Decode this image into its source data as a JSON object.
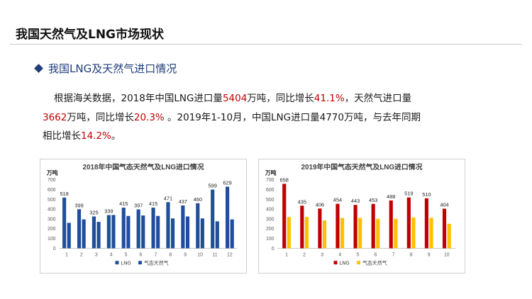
{
  "slide": {
    "title": "我国天然气及LNG市场现状"
  },
  "section": {
    "heading": "我国LNG及天然气进口情况"
  },
  "paragraph": {
    "s1": "根据海关数据，2018年中国LNG进口量",
    "s2": "5404",
    "s3": "万吨，同比增长",
    "s4": "41.1%",
    "s5": "，天然气进口量",
    "s6": "3662",
    "s7": "万吨，同比增长",
    "s8": "20.3%",
    "s9": " 。2019年1-10月，中国LNG进口量4770万吨，与去年同期",
    "s10": "相比增长",
    "s11": "14.2%",
    "s12": "。"
  },
  "colors": {
    "highlight": "#c00000",
    "accent": "#1f3d7a"
  },
  "chart_data": [
    {
      "type": "bar",
      "title": "2018年中国气态天然气及LNG进口情况",
      "unit": "万吨",
      "categories": [
        "1",
        "2",
        "3",
        "4",
        "5",
        "6",
        "7",
        "8",
        "9",
        "10",
        "11",
        "12"
      ],
      "series": [
        {
          "name": "LNG",
          "color": "#1f4e9c",
          "values": [
            518,
            399,
            325,
            339,
            415,
            397,
            415,
            471,
            437,
            460,
            599,
            629
          ]
        },
        {
          "name": "气态天然气",
          "color": "#1f4e9c",
          "values": [
            260,
            295,
            270,
            340,
            330,
            335,
            330,
            305,
            325,
            305,
            275,
            295
          ]
        }
      ],
      "data_labels": [
        "518",
        "399",
        "325",
        "339",
        "415",
        "397",
        "415",
        "471",
        "437",
        "460",
        "599",
        "629"
      ],
      "ylim": [
        0,
        700
      ],
      "yticks": [
        "0",
        "100",
        "200",
        "300",
        "400",
        "500",
        "600",
        "700"
      ],
      "grid": false,
      "legend": "bottom"
    },
    {
      "type": "bar",
      "title": "2019年中国气态天然气及LNG进口情况",
      "unit": "万吨",
      "categories": [
        "1",
        "2",
        "3",
        "4",
        "5",
        "6",
        "7",
        "8",
        "9",
        "10"
      ],
      "series": [
        {
          "name": "LNG",
          "color": "#c00000",
          "values": [
            658,
            435,
            406,
            454,
            443,
            453,
            488,
            519,
            510,
            404
          ]
        },
        {
          "name": "气态天然气",
          "color": "#ffc000",
          "values": [
            320,
            320,
            285,
            310,
            310,
            300,
            300,
            315,
            310,
            250
          ]
        }
      ],
      "data_labels": [
        "658",
        "435",
        "406",
        "454",
        "443",
        "453",
        "488",
        "519",
        "510",
        "404"
      ],
      "ylim": [
        0,
        700
      ],
      "yticks": [
        "0",
        "100",
        "200",
        "300",
        "400",
        "500",
        "600",
        "700"
      ],
      "grid": false,
      "legend": "bottom"
    }
  ]
}
